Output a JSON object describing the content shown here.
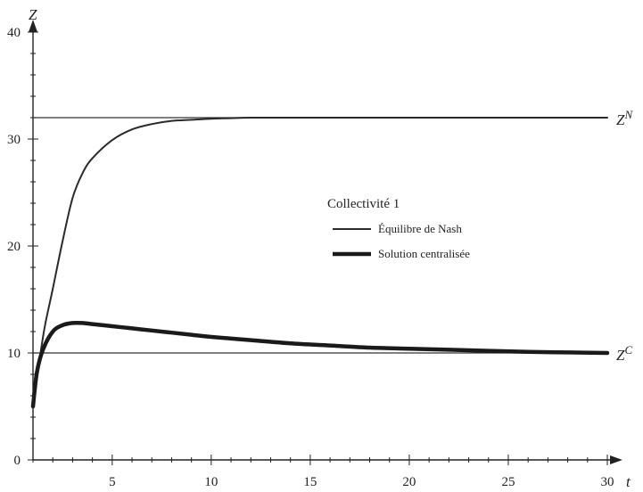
{
  "chart_data": {
    "type": "line",
    "xlabel": "t",
    "ylabel": "Z",
    "xlim": [
      1,
      30
    ],
    "ylim": [
      0,
      40
    ],
    "x_ticks": [
      5,
      10,
      15,
      20,
      25,
      30
    ],
    "y_ticks": [
      0,
      10,
      20,
      30,
      40
    ],
    "x_tick_labels": [
      "5",
      "10",
      "15",
      "20",
      "25",
      "30"
    ],
    "y_tick_labels": [
      "0",
      "10",
      "20",
      "30",
      "40"
    ],
    "grid": false,
    "legend": {
      "title": "Collectivité 1",
      "position": "center-right",
      "entries": [
        "Équilibre de Nash",
        "Solution centralisée"
      ]
    },
    "reference_lines": [
      {
        "label_base": "Z",
        "label_sup": "N",
        "y": 32
      },
      {
        "label_base": "Z",
        "label_sup": "C",
        "y": 10
      }
    ],
    "series": [
      {
        "name": "Équilibre de Nash",
        "style": "thin",
        "x": [
          1,
          1.3,
          1.6,
          2,
          2.5,
          3,
          3.5,
          4,
          5,
          6,
          7,
          8,
          9,
          10,
          11,
          12,
          14,
          16,
          18,
          20,
          25,
          30
        ],
        "y": [
          5,
          9,
          12.5,
          16,
          20.5,
          24.5,
          26.8,
          28.2,
          29.9,
          30.9,
          31.4,
          31.7,
          31.8,
          31.9,
          31.95,
          32,
          32,
          32,
          32,
          32,
          32,
          32
        ]
      },
      {
        "name": "Solution centralisée",
        "style": "thick",
        "x": [
          1,
          1.2,
          1.5,
          2,
          2.5,
          3,
          3.5,
          4,
          5,
          6,
          7,
          8,
          9,
          10,
          12,
          14,
          16,
          18,
          20,
          22,
          24,
          26,
          28,
          30
        ],
        "y": [
          5,
          8.2,
          10.3,
          12,
          12.6,
          12.8,
          12.8,
          12.7,
          12.5,
          12.3,
          12.1,
          11.9,
          11.7,
          11.5,
          11.2,
          10.9,
          10.7,
          10.5,
          10.4,
          10.3,
          10.2,
          10.1,
          10.05,
          10
        ]
      }
    ]
  }
}
